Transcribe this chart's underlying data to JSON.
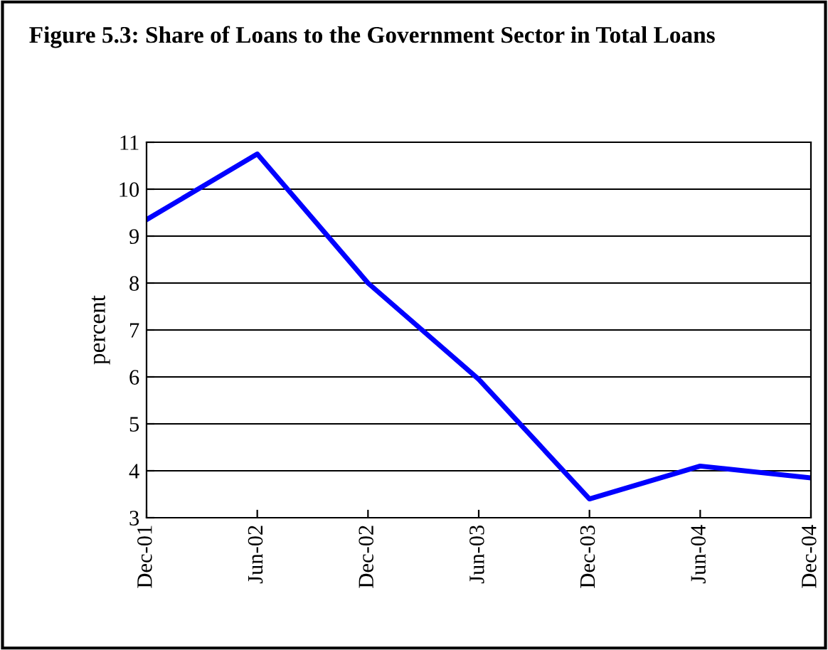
{
  "chart_data": {
    "type": "line",
    "title": "Figure 5.3: Share of Loans to the Government Sector in Total Loans",
    "ylabel": "percent",
    "categories": [
      "Dec-01",
      "Jun-02",
      "Dec-02",
      "Jun-03",
      "Dec-03",
      "Jun-04",
      "Dec-04"
    ],
    "series": [
      {
        "color": "#0000ff",
        "values": [
          9.35,
          10.75,
          8.0,
          5.95,
          3.4,
          4.1,
          3.85
        ]
      }
    ],
    "ylim": [
      3,
      11
    ],
    "yticks": [
      3,
      4,
      5,
      6,
      7,
      8,
      9,
      10,
      11
    ],
    "grid": "y",
    "marker": "none",
    "line_style": "solid",
    "legend": false
  }
}
